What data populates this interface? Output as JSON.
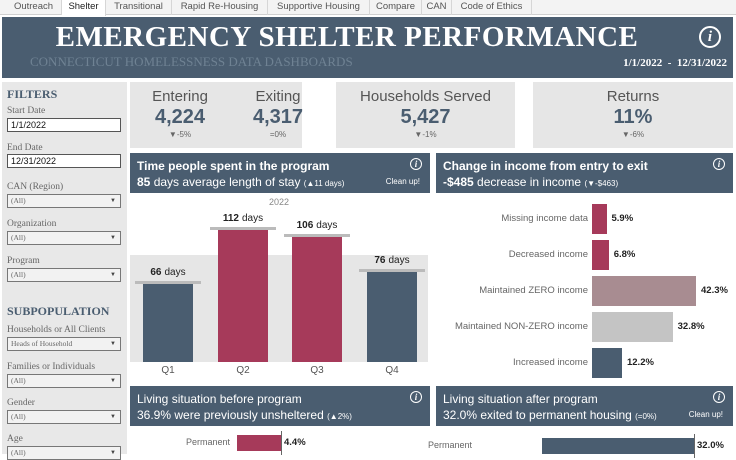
{
  "tabs": [
    "Outreach",
    "Shelter",
    "Transitional",
    "Rapid Re-Housing",
    "Supportive Housing",
    "Compare",
    "CAN",
    "Code of Ethics"
  ],
  "active_tab": "Shelter",
  "header": {
    "title": "EMERGENCY SHELTER PERFORMANCE",
    "subtitle": "CONNECTICUT HOMELESSNESS DATA DASHBOARDS",
    "date_range": "1/1/2022  -  12/31/2022",
    "info": "i"
  },
  "sidebar": {
    "filters_title": "FILTERS",
    "start_label": "Start Date",
    "start_value": "1/1/2022",
    "end_label": "End Date",
    "end_value": "12/31/2022",
    "dropdowns": [
      {
        "label": "CAN (Region)",
        "value": "(All)"
      },
      {
        "label": "Organization",
        "value": "(All)"
      },
      {
        "label": "Program",
        "value": "(All)"
      }
    ],
    "subpop_title": "SUBPOPULATION",
    "subpop": [
      {
        "label": "Households or All Clients",
        "value": "Heads of Household"
      },
      {
        "label": "Families or Individuals",
        "value": "(All)"
      },
      {
        "label": "Gender",
        "value": "(All)"
      },
      {
        "label": "Age",
        "value": "(All)"
      }
    ]
  },
  "kpis": {
    "entering": {
      "label": "Entering",
      "value": "4,224",
      "change": "▼-5%"
    },
    "exiting": {
      "label": "Exiting",
      "value": "4,317",
      "change": "=0%"
    },
    "served": {
      "label": "Households Served",
      "value": "5,427",
      "change": "▼-1%"
    },
    "returns": {
      "label": "Returns",
      "value": "11%",
      "change": "▼-6%"
    }
  },
  "time_panel": {
    "title": "Time people spent in the program",
    "value": "85",
    "text": " days average length of stay ",
    "change": "(▲11 days)",
    "action": "Clean up!"
  },
  "income_panel": {
    "title": "Change in income from entry to exit",
    "value": "-$485",
    "text": " decrease in income ",
    "change": "(▼-$463)"
  },
  "before_panel": {
    "title": "Living situation before program",
    "subtitle": "36.9% were previously unsheltered ",
    "change": "(▲2%)"
  },
  "after_panel": {
    "title": "Living situation after program",
    "subtitle": "32.0% exited to permanent housing ",
    "change": "(=0%)",
    "action": "Clean up!"
  },
  "colors": {
    "header": "#4a5d70",
    "highlight": "#a63a5a",
    "zero": "#a88c91",
    "nonzero": "#c4c4c4"
  },
  "chart_data": [
    {
      "type": "bar",
      "title": "2022",
      "categories": [
        "Q1",
        "Q2",
        "Q3",
        "Q4"
      ],
      "values": [
        66,
        112,
        106,
        76
      ],
      "unit": "days",
      "highlighted": [
        false,
        true,
        true,
        false
      ],
      "labels": [
        "66",
        "112",
        "106",
        "76"
      ]
    },
    {
      "type": "bar",
      "orientation": "horizontal",
      "categories": [
        "Missing income data",
        "Decreased income",
        "Maintained ZERO income",
        "Maintained NON-ZERO income",
        "Increased income"
      ],
      "values": [
        5.9,
        6.8,
        42.3,
        32.8,
        12.2
      ],
      "labels": [
        "5.9%",
        "6.8%",
        "42.3%",
        "32.8%",
        "12.2%"
      ]
    },
    {
      "type": "bar",
      "orientation": "horizontal",
      "categories": [
        "Permanent"
      ],
      "values": [
        4.4
      ],
      "labels": [
        "4.4%"
      ]
    },
    {
      "type": "bar",
      "orientation": "horizontal",
      "categories": [
        "Permanent"
      ],
      "values": [
        32.0
      ],
      "labels": [
        "32.0%"
      ]
    }
  ]
}
